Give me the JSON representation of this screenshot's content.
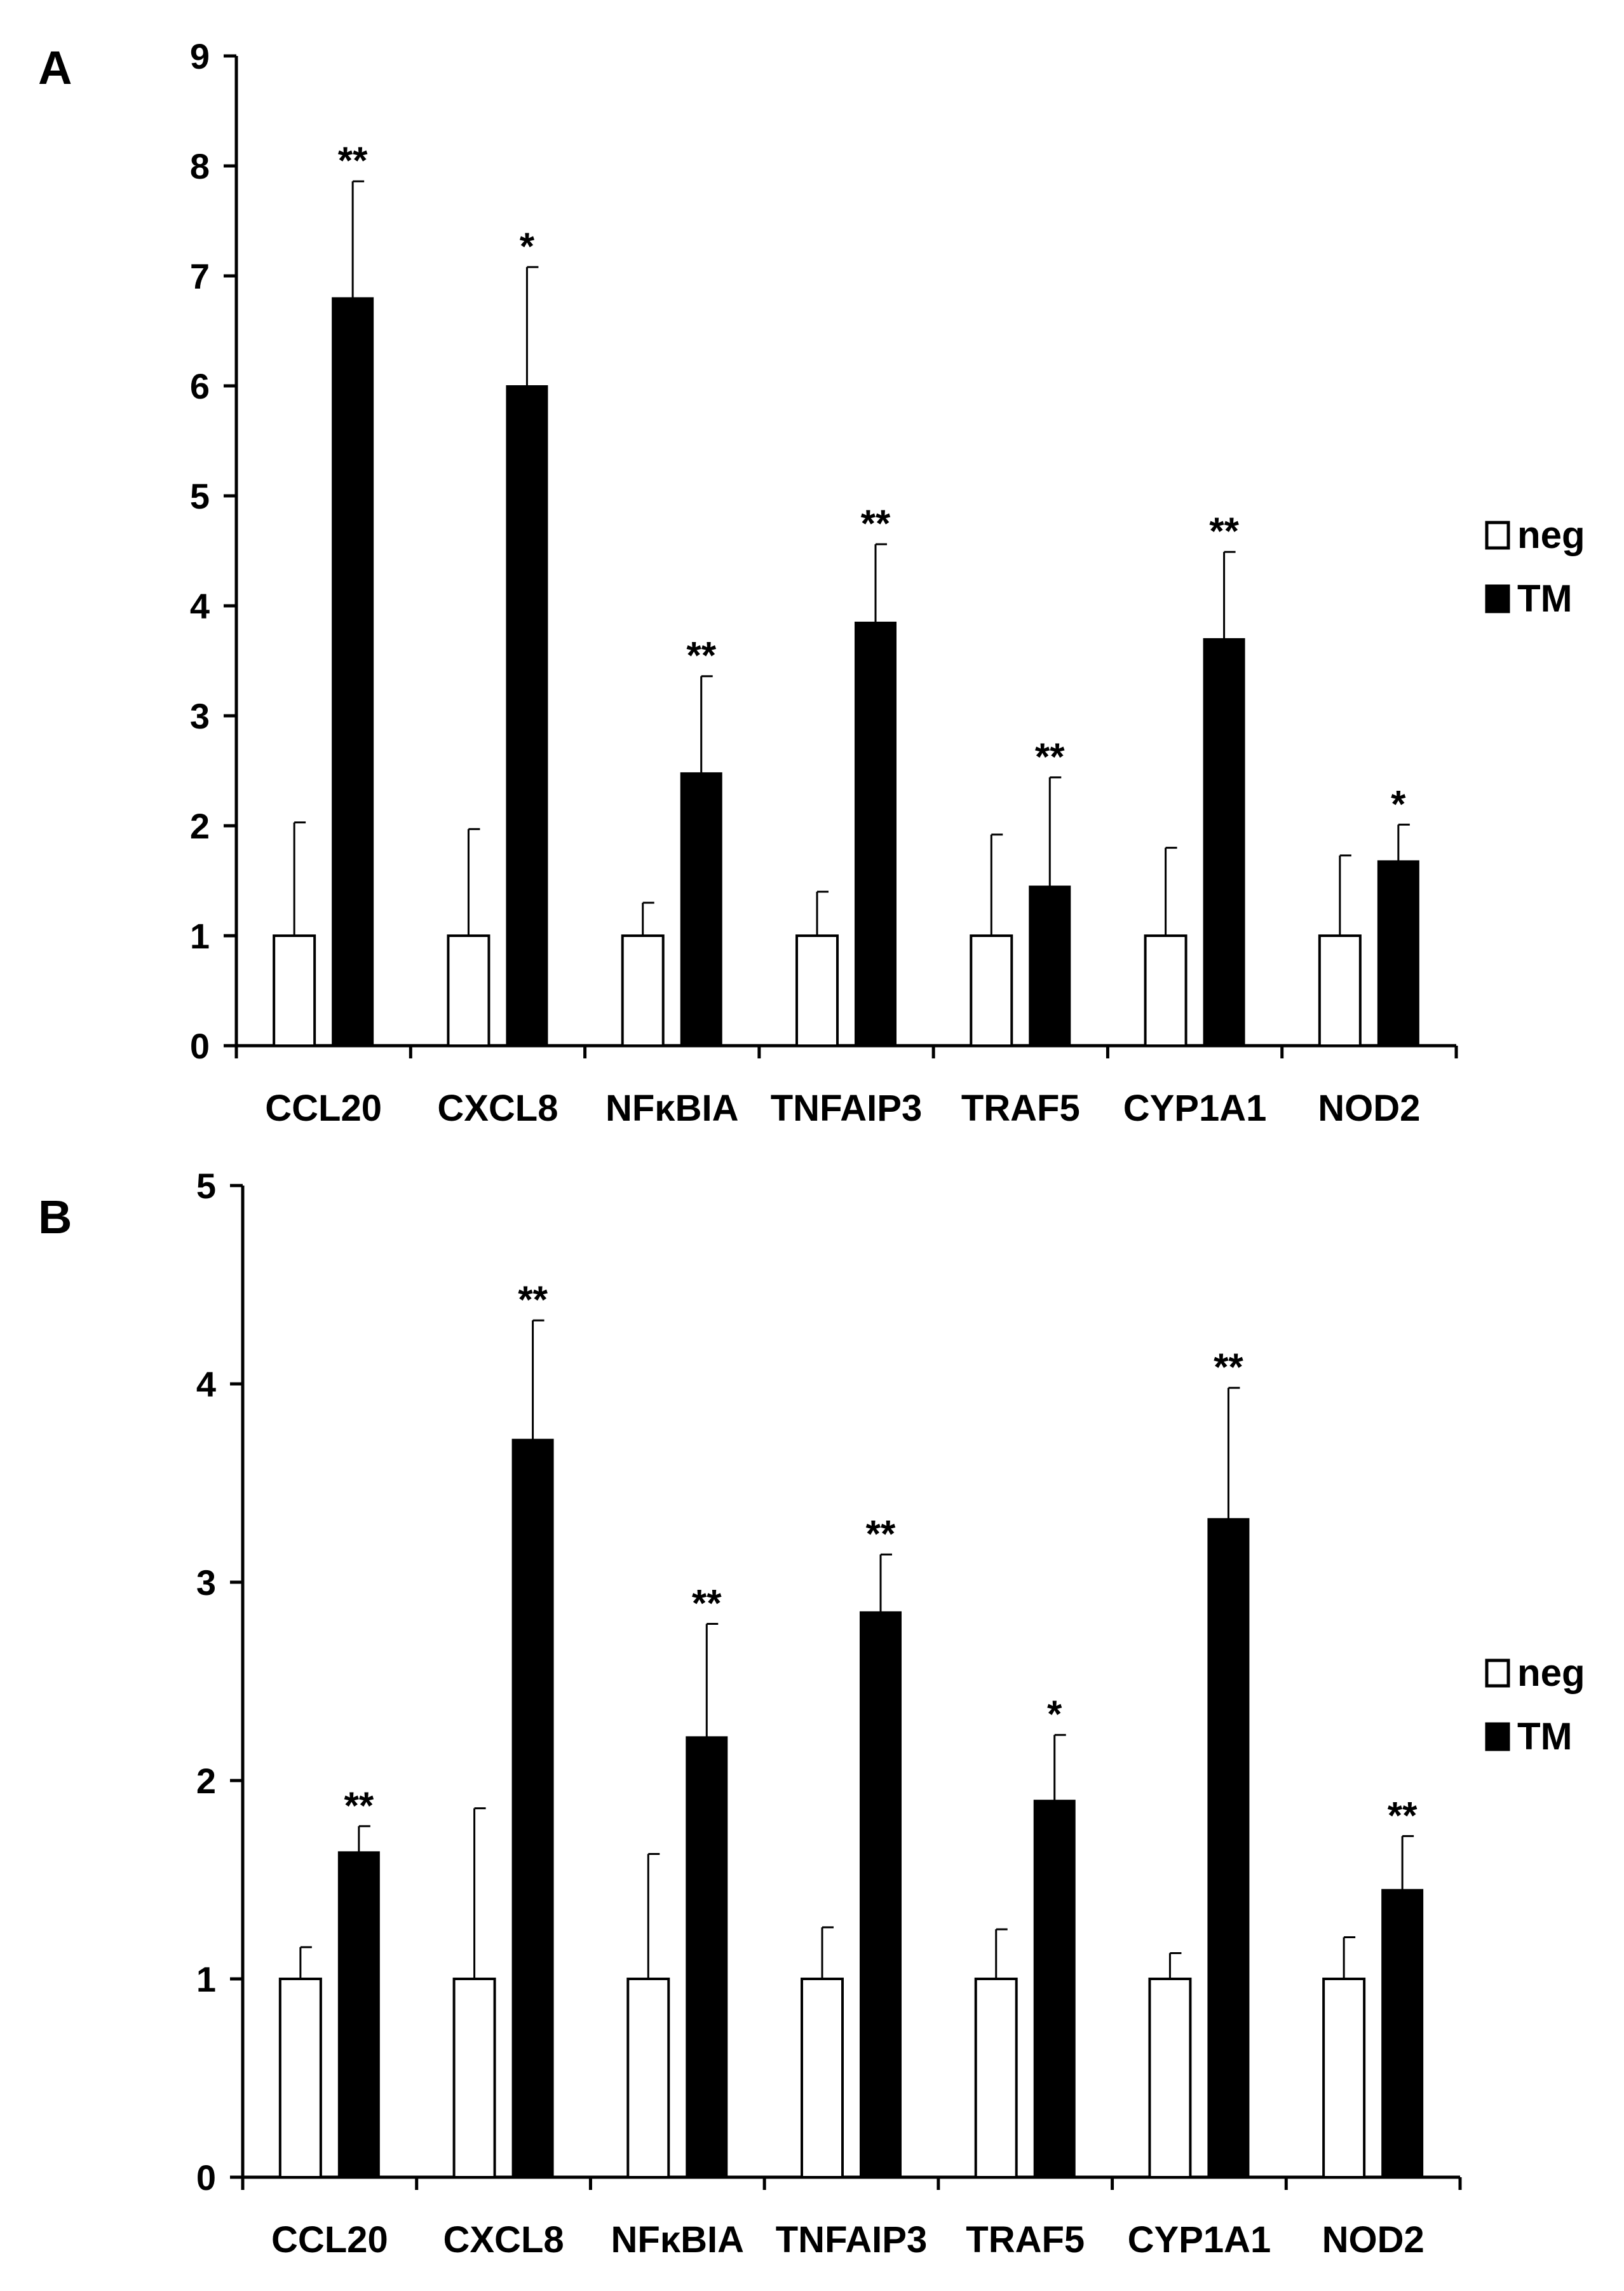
{
  "chart_data": [
    {
      "type": "bar",
      "panel_label": "A",
      "categories": [
        "CCL20",
        "CXCL8",
        "NFκBIA",
        "TNFAIP3",
        "TRAF5",
        "CYP1A1",
        "NOD2"
      ],
      "ylim": [
        0,
        9
      ],
      "yticks": [
        "0",
        "1",
        "2",
        "3",
        "4",
        "5",
        "6",
        "7",
        "8",
        "9"
      ],
      "series": [
        {
          "name": "neg",
          "color": "#ffffff",
          "values": [
            1,
            1,
            1,
            1,
            1,
            1,
            1
          ],
          "errors": [
            1.03,
            0.97,
            0.3,
            0.4,
            0.92,
            0.8,
            0.73
          ]
        },
        {
          "name": "TM",
          "color": "#000000",
          "values": [
            6.8,
            6.0,
            2.48,
            3.85,
            1.45,
            3.7,
            1.68
          ],
          "errors": [
            1.06,
            1.08,
            0.88,
            0.71,
            0.99,
            0.79,
            0.33
          ]
        }
      ],
      "significance": [
        "**",
        "*",
        "**",
        "**",
        "**",
        "**",
        "*"
      ],
      "legend": [
        "neg",
        "TM"
      ]
    },
    {
      "type": "bar",
      "panel_label": "B",
      "categories": [
        "CCL20",
        "CXCL8",
        "NFκBIA",
        "TNFAIP3",
        "TRAF5",
        "CYP1A1",
        "NOD2"
      ],
      "ylim": [
        0,
        5
      ],
      "yticks": [
        "0",
        "1",
        "2",
        "3",
        "4",
        "5"
      ],
      "series": [
        {
          "name": "neg",
          "color": "#ffffff",
          "values": [
            1,
            1,
            1,
            1,
            1,
            1,
            1
          ],
          "errors": [
            0.16,
            0.86,
            0.63,
            0.26,
            0.25,
            0.13,
            0.21
          ]
        },
        {
          "name": "TM",
          "color": "#000000",
          "values": [
            1.64,
            3.72,
            2.22,
            2.85,
            1.9,
            3.32,
            1.45
          ],
          "errors": [
            0.13,
            0.6,
            0.57,
            0.29,
            0.33,
            0.66,
            0.27
          ]
        }
      ],
      "significance": [
        "**",
        "**",
        "**",
        "**",
        "*",
        "**",
        "**"
      ],
      "legend": [
        "neg",
        "TM"
      ]
    }
  ]
}
